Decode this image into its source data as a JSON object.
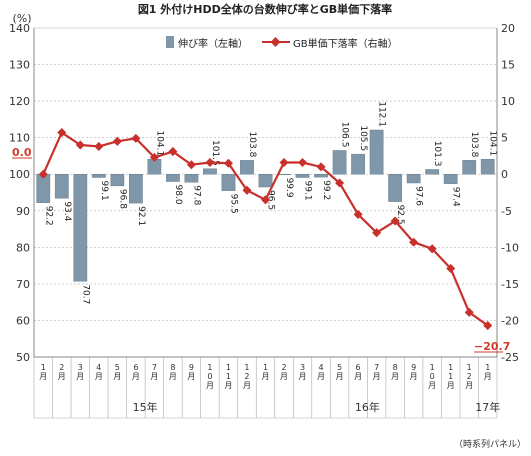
{
  "chart_data": {
    "type": "bar",
    "title": "図1 外付けHDD全体の台数伸び率とGB単価下落率",
    "left_axis": {
      "label": "(%)",
      "ylim": [
        50,
        140
      ],
      "ticks": [
        50,
        60,
        70,
        80,
        90,
        100,
        110,
        120,
        130,
        140
      ]
    },
    "right_axis": {
      "ylim": [
        -25,
        20
      ],
      "ticks": [
        -25,
        -20,
        -15,
        -10,
        -5,
        0,
        5,
        10,
        15,
        20
      ]
    },
    "categories": [
      "1月",
      "2月",
      "3月",
      "4月",
      "5月",
      "6月",
      "7月",
      "8月",
      "9月",
      "10月",
      "11月",
      "12月",
      "1月",
      "2月",
      "3月",
      "4月",
      "5月",
      "6月",
      "7月",
      "8月",
      "9月",
      "10月",
      "11月",
      "12月",
      "1月"
    ],
    "year_groups": [
      {
        "label": "15年",
        "start": 0,
        "end": 11
      },
      {
        "label": "16年",
        "start": 12,
        "end": 23
      },
      {
        "label": "17年",
        "start": 24,
        "end": 24
      }
    ],
    "series": [
      {
        "name": "伸び率（左軸）",
        "type": "bar",
        "axis": "left",
        "color": "#7f97a8",
        "values": [
          92.2,
          93.4,
          70.7,
          99.1,
          96.8,
          92.1,
          104.1,
          98.0,
          97.8,
          101.5,
          95.5,
          103.8,
          96.5,
          99.9,
          99.1,
          99.2,
          106.5,
          105.5,
          112.1,
          92.5,
          97.6,
          101.3,
          97.4,
          103.8,
          104.1
        ],
        "labels": [
          "92.2",
          "93.4",
          "70.7",
          "99.1",
          "96.8",
          "92.1",
          "104.1",
          "98.0",
          "97.8",
          "101.5",
          "95.5",
          "103.8",
          "96.5",
          "99.9",
          "99.1",
          "99.2",
          "106.5",
          "105.5",
          "112.1",
          "92.5",
          "97.6",
          "101.3",
          "97.4",
          "103.8",
          "104.1"
        ]
      },
      {
        "name": "GB単価下落率（右軸）",
        "type": "line",
        "axis": "right",
        "color": "#c8302b",
        "values": [
          0.0,
          5.7,
          4.0,
          3.8,
          4.5,
          4.9,
          2.3,
          3.1,
          1.3,
          1.6,
          1.5,
          -2.2,
          -3.5,
          1.6,
          1.6,
          1.0,
          -1.2,
          -5.5,
          -8.0,
          -6.4,
          -9.3,
          -10.2,
          -12.9,
          -18.9,
          -20.7
        ],
        "start_label": "0.0",
        "end_label": "−20.7"
      }
    ],
    "legend_position": "top"
  },
  "note": "（時系列パネル）"
}
